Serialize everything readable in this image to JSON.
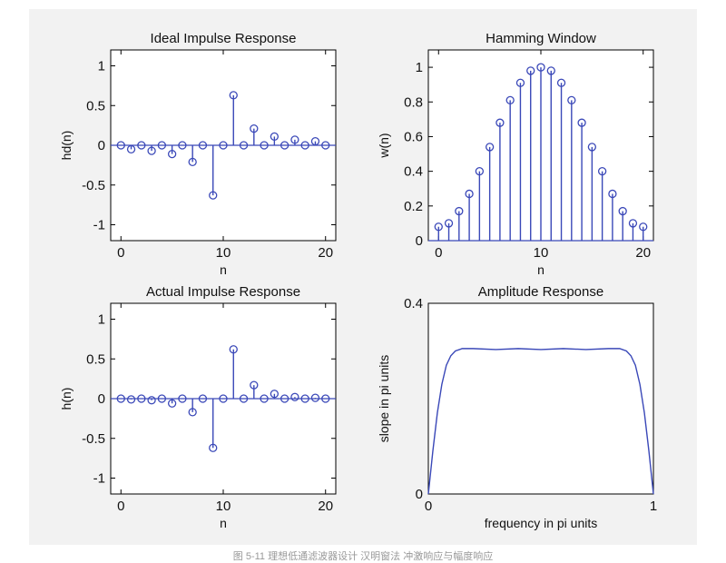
{
  "chart_data": [
    {
      "type": "stem",
      "title": "Ideal Impulse Response",
      "xlabel": "n",
      "ylabel": "hd(n)",
      "xlim": [
        -1,
        21
      ],
      "ylim": [
        -1.2,
        1.2
      ],
      "xticks": [
        0,
        10,
        20
      ],
      "yticks": [
        -1,
        -0.5,
        0,
        0.5,
        1
      ],
      "ytick_labels": [
        "-1",
        "-0.5",
        "0",
        "0.5",
        "1"
      ],
      "x": [
        0,
        1,
        2,
        3,
        4,
        5,
        6,
        7,
        8,
        9,
        10,
        11,
        12,
        13,
        14,
        15,
        16,
        17,
        18,
        19,
        20
      ],
      "values": [
        0,
        -0.05,
        0,
        -0.07,
        0,
        -0.11,
        0,
        -0.21,
        0,
        -0.63,
        0,
        0.63,
        0,
        0.21,
        0,
        0.11,
        0,
        0.07,
        0,
        0.05,
        0
      ]
    },
    {
      "type": "stem",
      "title": "Hamming Window",
      "xlabel": "n",
      "ylabel": "w(n)",
      "xlim": [
        -1,
        21
      ],
      "ylim": [
        0,
        1.1
      ],
      "xticks": [
        0,
        10,
        20
      ],
      "yticks": [
        0,
        0.2,
        0.4,
        0.6,
        0.8,
        1
      ],
      "ytick_labels": [
        "0",
        "0.2",
        "0.4",
        "0.6",
        "0.8",
        "1"
      ],
      "x": [
        0,
        1,
        2,
        3,
        4,
        5,
        6,
        7,
        8,
        9,
        10,
        11,
        12,
        13,
        14,
        15,
        16,
        17,
        18,
        19,
        20
      ],
      "values": [
        0.08,
        0.1,
        0.17,
        0.27,
        0.4,
        0.54,
        0.68,
        0.81,
        0.91,
        0.98,
        1.0,
        0.98,
        0.91,
        0.81,
        0.68,
        0.54,
        0.4,
        0.27,
        0.17,
        0.1,
        0.08
      ]
    },
    {
      "type": "stem",
      "title": "Actual Impulse Response",
      "xlabel": "n",
      "ylabel": "h(n)",
      "xlim": [
        -1,
        21
      ],
      "ylim": [
        -1.2,
        1.2
      ],
      "xticks": [
        0,
        10,
        20
      ],
      "yticks": [
        -1,
        -0.5,
        0,
        0.5,
        1
      ],
      "ytick_labels": [
        "-1",
        "-0.5",
        "0",
        "0.5",
        "1"
      ],
      "x": [
        0,
        1,
        2,
        3,
        4,
        5,
        6,
        7,
        8,
        9,
        10,
        11,
        12,
        13,
        14,
        15,
        16,
        17,
        18,
        19,
        20
      ],
      "values": [
        0,
        -0.01,
        0,
        -0.02,
        0,
        -0.06,
        0,
        -0.17,
        0,
        -0.62,
        0,
        0.62,
        0,
        0.17,
        0,
        0.06,
        0,
        0.02,
        0,
        0.01,
        0
      ]
    },
    {
      "type": "line",
      "title": "Amplitude Response",
      "xlabel": "frequency in pi units",
      "ylabel": "slope in pi units",
      "xlim": [
        0,
        1
      ],
      "ylim": [
        0,
        0.4
      ],
      "xticks": [
        0,
        1
      ],
      "yticks": [
        0,
        0.4
      ],
      "ytick_labels": [
        "0",
        "0.4"
      ],
      "x": [
        0,
        0.02,
        0.04,
        0.06,
        0.08,
        0.1,
        0.12,
        0.15,
        0.2,
        0.3,
        0.4,
        0.5,
        0.6,
        0.7,
        0.8,
        0.85,
        0.88,
        0.9,
        0.92,
        0.94,
        0.96,
        0.98,
        1.0
      ],
      "values": [
        0,
        0.09,
        0.17,
        0.23,
        0.27,
        0.29,
        0.3,
        0.305,
        0.305,
        0.303,
        0.305,
        0.303,
        0.305,
        0.303,
        0.305,
        0.305,
        0.3,
        0.29,
        0.27,
        0.23,
        0.17,
        0.09,
        0
      ]
    }
  ],
  "caption": "图 5-11 理想低通滤波器设计 汉明窗法 冲激响应与幅度响应"
}
